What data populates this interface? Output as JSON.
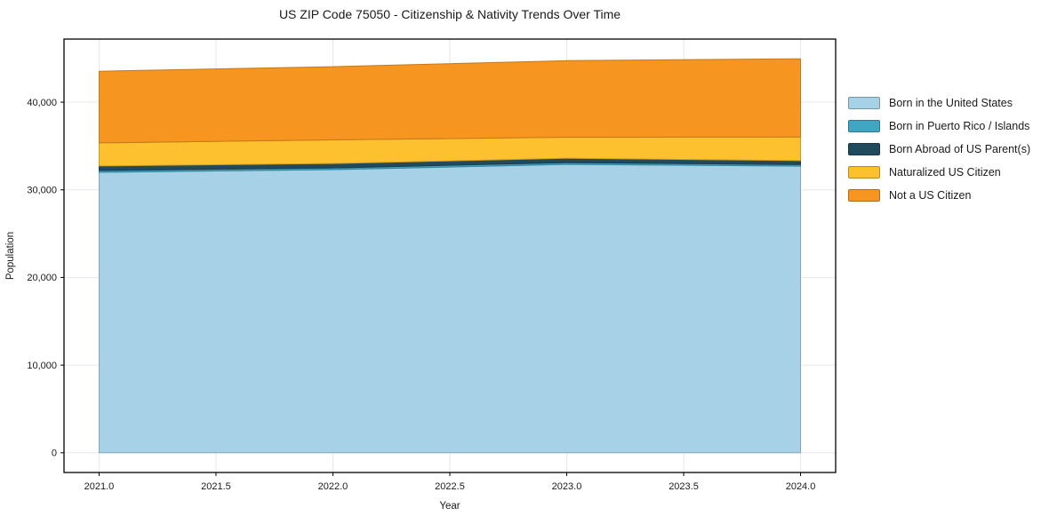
{
  "chart_data": {
    "type": "area",
    "stacked": true,
    "title": "US ZIP Code 75050 - Citizenship & Nativity Trends Over Time",
    "xlabel": "Year",
    "ylabel": "Population",
    "x": [
      2021,
      2022,
      2023,
      2024
    ],
    "series": [
      {
        "name": "Born in the United States",
        "color": "#a6d1e6",
        "values": [
          32000,
          32300,
          32900,
          32700
        ]
      },
      {
        "name": "Born in Puerto Rico / Islands",
        "color": "#41a6c3",
        "values": [
          200,
          200,
          200,
          180
        ]
      },
      {
        "name": "Born Abroad of US Parent(s)",
        "color": "#214a5c",
        "values": [
          520,
          500,
          500,
          450
        ]
      },
      {
        "name": "Naturalized US Citizen",
        "color": "#fdc12f",
        "values": [
          2630,
          2700,
          2400,
          2700
        ]
      },
      {
        "name": "Not a US Citizen",
        "color": "#f79521",
        "values": [
          8180,
          8350,
          8740,
          8920
        ]
      }
    ],
    "xlim": [
      2020.85,
      2024.15
    ],
    "ylim": [
      -2250,
      47200
    ],
    "xticks": {
      "values": [
        2021.0,
        2021.5,
        2022.0,
        2022.5,
        2023.0,
        2023.5,
        2024.0
      ],
      "labels": [
        "2021.0",
        "2021.5",
        "2022.0",
        "2022.5",
        "2023.0",
        "2023.5",
        "2024.0"
      ]
    },
    "yticks": {
      "values": [
        0,
        10000,
        20000,
        30000,
        40000
      ],
      "labels": [
        "0",
        "10,000",
        "20,000",
        "30,000",
        "40,000"
      ]
    },
    "grid": true,
    "legend_position": "right"
  },
  "colors": {
    "background": "#ffffff",
    "grid": "#e7e7e7",
    "spine": "#000000",
    "text": "#1a1a1a"
  }
}
